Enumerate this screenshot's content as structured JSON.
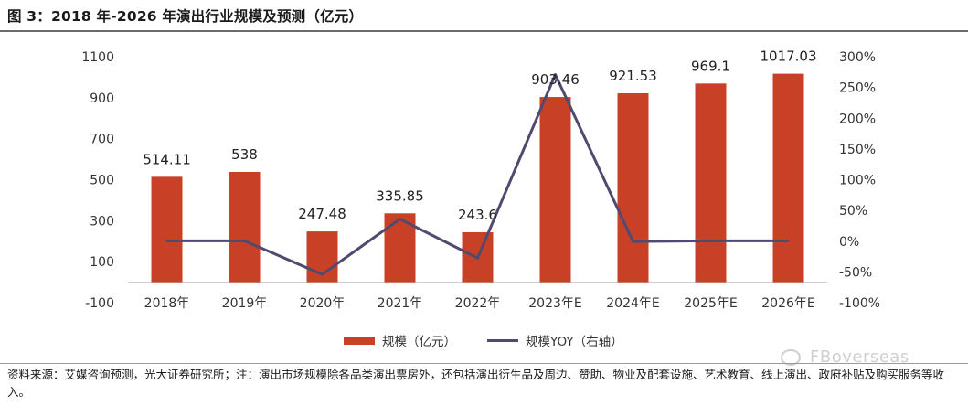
{
  "title": "图 3：2018 年-2026 年演出行业规模及预测（亿元）",
  "source_note": "资料来源：艾媒咨询预测，光大证券研究所；注：演出市场规模除各品类演出票房外，还包括演出衍生品及周边、赞助、物业及配套设施、艺术教育、线上演出、政府补贴及购买服务等收入。",
  "watermark": "FBoverseas",
  "colors": {
    "bar": "#c84127",
    "line": "#4f4a6e"
  },
  "chart_data": {
    "type": "bar",
    "categories": [
      "2018年",
      "2019年",
      "2020年",
      "2021年",
      "2022年",
      "2023年E",
      "2024年E",
      "2025年E",
      "2026年E"
    ],
    "series": [
      {
        "name": "规模（亿元）",
        "type": "bar",
        "axis": "left",
        "values": [
          514.11,
          538,
          247.48,
          335.85,
          243.6,
          903.46,
          921.53,
          969.1,
          1017.03
        ],
        "labels": [
          "514.11",
          "538",
          "247.48",
          "335.85",
          "243.6",
          "903.46",
          "921.53",
          "969.1",
          "1017.03"
        ]
      },
      {
        "name": "规模YOY（右轴）",
        "type": "line",
        "axis": "right",
        "values": [
          0.5,
          0.5,
          -54,
          36,
          -27.5,
          271,
          -0.5,
          0.5,
          0.5
        ]
      }
    ],
    "left_axis": {
      "ticks": [
        "1100",
        "900",
        "700",
        "500",
        "300",
        "100",
        "-100"
      ],
      "ylim": [
        -100,
        1100
      ]
    },
    "right_axis": {
      "ticks": [
        "300%",
        "250%",
        "200%",
        "150%",
        "100%",
        "50%",
        "0%",
        "-50%",
        "-100%"
      ],
      "ylim": [
        -100,
        300
      ]
    },
    "grid": false,
    "legend_position": "bottom"
  }
}
